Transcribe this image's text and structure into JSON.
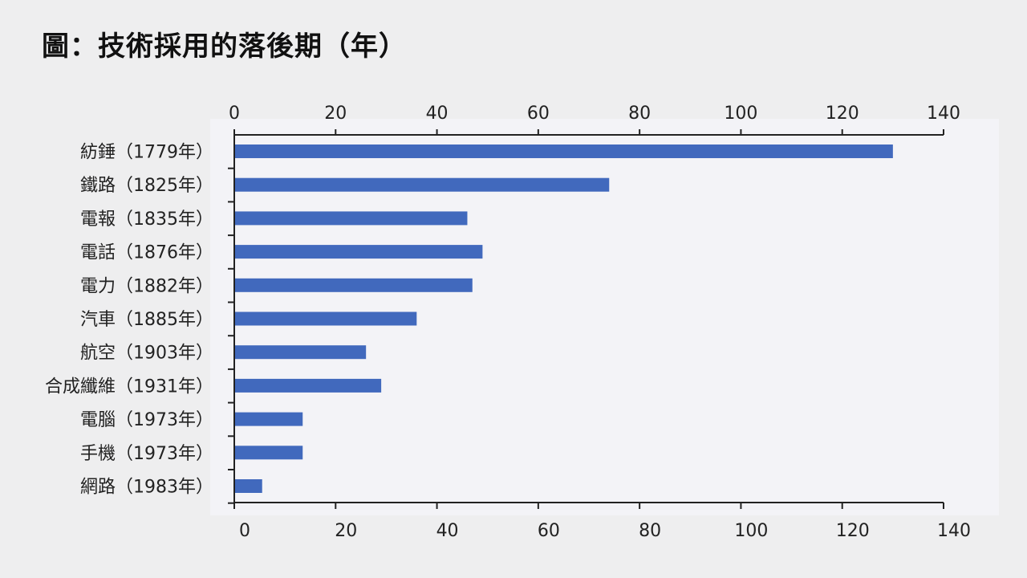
{
  "chart_data": {
    "type": "bar",
    "orientation": "horizontal",
    "title": "圖：技術採用的落後期（年）",
    "categories": [
      "紡錘（1779年）",
      "鐵路（1825年）",
      "電報（1835年）",
      "電話（1876年）",
      "電力（1882年）",
      "汽車（1885年）",
      "航空（1903年）",
      "合成纖維（1931年）",
      "電腦（1973年）",
      "手機（1973年）",
      "網路（1983年）"
    ],
    "values": [
      130,
      74,
      46,
      49,
      47,
      36,
      26,
      29,
      13.5,
      13.5,
      5.5
    ],
    "xlim": [
      0,
      140
    ],
    "ticks": [
      0,
      20,
      40,
      60,
      80,
      100,
      120,
      140
    ],
    "axis_position": "top and bottom",
    "grid": false,
    "colors": {
      "bar": "#4169bd",
      "axis": "#222222",
      "plot_bg": "#f3f3f7"
    }
  }
}
